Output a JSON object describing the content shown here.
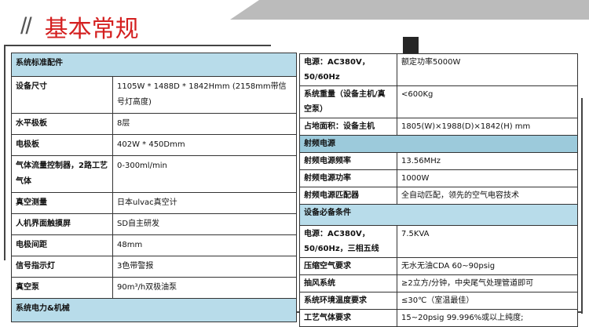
{
  "title": {
    "slashes": "//",
    "text": "基本常规"
  },
  "left_table": {
    "header": "系统标准配件",
    "rows": [
      {
        "k": "设备尺寸",
        "v": "1105W * 1488D * 1842Hmm (2158mm带信号灯高度)"
      },
      {
        "k": "水平极板",
        "v": "8层"
      },
      {
        "k": "电极板",
        "v": "402W * 450Dmm"
      },
      {
        "k": "气体流量控制器，2路工艺气体",
        "v": "0-300ml/min"
      },
      {
        "k": "真空测量",
        "v": "日本ulvac真空计"
      },
      {
        "k": "人机界面触摸屏",
        "v": "SD自主研发"
      },
      {
        "k": "电极间距",
        "v": "48mm"
      },
      {
        "k": "信号指示灯",
        "v": "3色带警报"
      },
      {
        "k": "真空泵",
        "v": "90m³/h双极油泵"
      }
    ],
    "footer_header": "系统电力&机械"
  },
  "right_table": {
    "rows1": [
      {
        "k": "电源：AC380V，50/60Hz",
        "v": "额定功率5000W"
      },
      {
        "k": "系统重量（设备主机/真空泵）",
        "v": "<600Kg"
      },
      {
        "k": "占地面积：设备主机",
        "v": "1805(W)×1988(D)×1842(H) mm"
      }
    ],
    "rf_header": "射频电源",
    "rows2": [
      {
        "k": "射频电源频率",
        "v": "13.56MHz"
      },
      {
        "k": "射频电源功率",
        "v": "1000W"
      },
      {
        "k": "射频电源匹配器",
        "v": "全自动匹配，领先的空气电容技术"
      }
    ],
    "req_header": "设备必备条件",
    "rows3": [
      {
        "k": "电源：AC380V，50/60Hz，三相五线",
        "v": "7.5KVA"
      },
      {
        "k": "压缩空气要求",
        "v": "无水无油CDA 60~90psig"
      },
      {
        "k": "抽风系统",
        "v": "≥2立方/分钟，中央尾气处理管道即可"
      },
      {
        "k": "系统环境温度要求",
        "v": "≤30℃（室温最佳）"
      },
      {
        "k": "工艺气体要求",
        "v": "15~20psig  99.996%或以上纯度;"
      }
    ]
  },
  "colors": {
    "title": "#d42020",
    "header_bg": "#b8dcea",
    "banner": "#bbbbbb"
  }
}
